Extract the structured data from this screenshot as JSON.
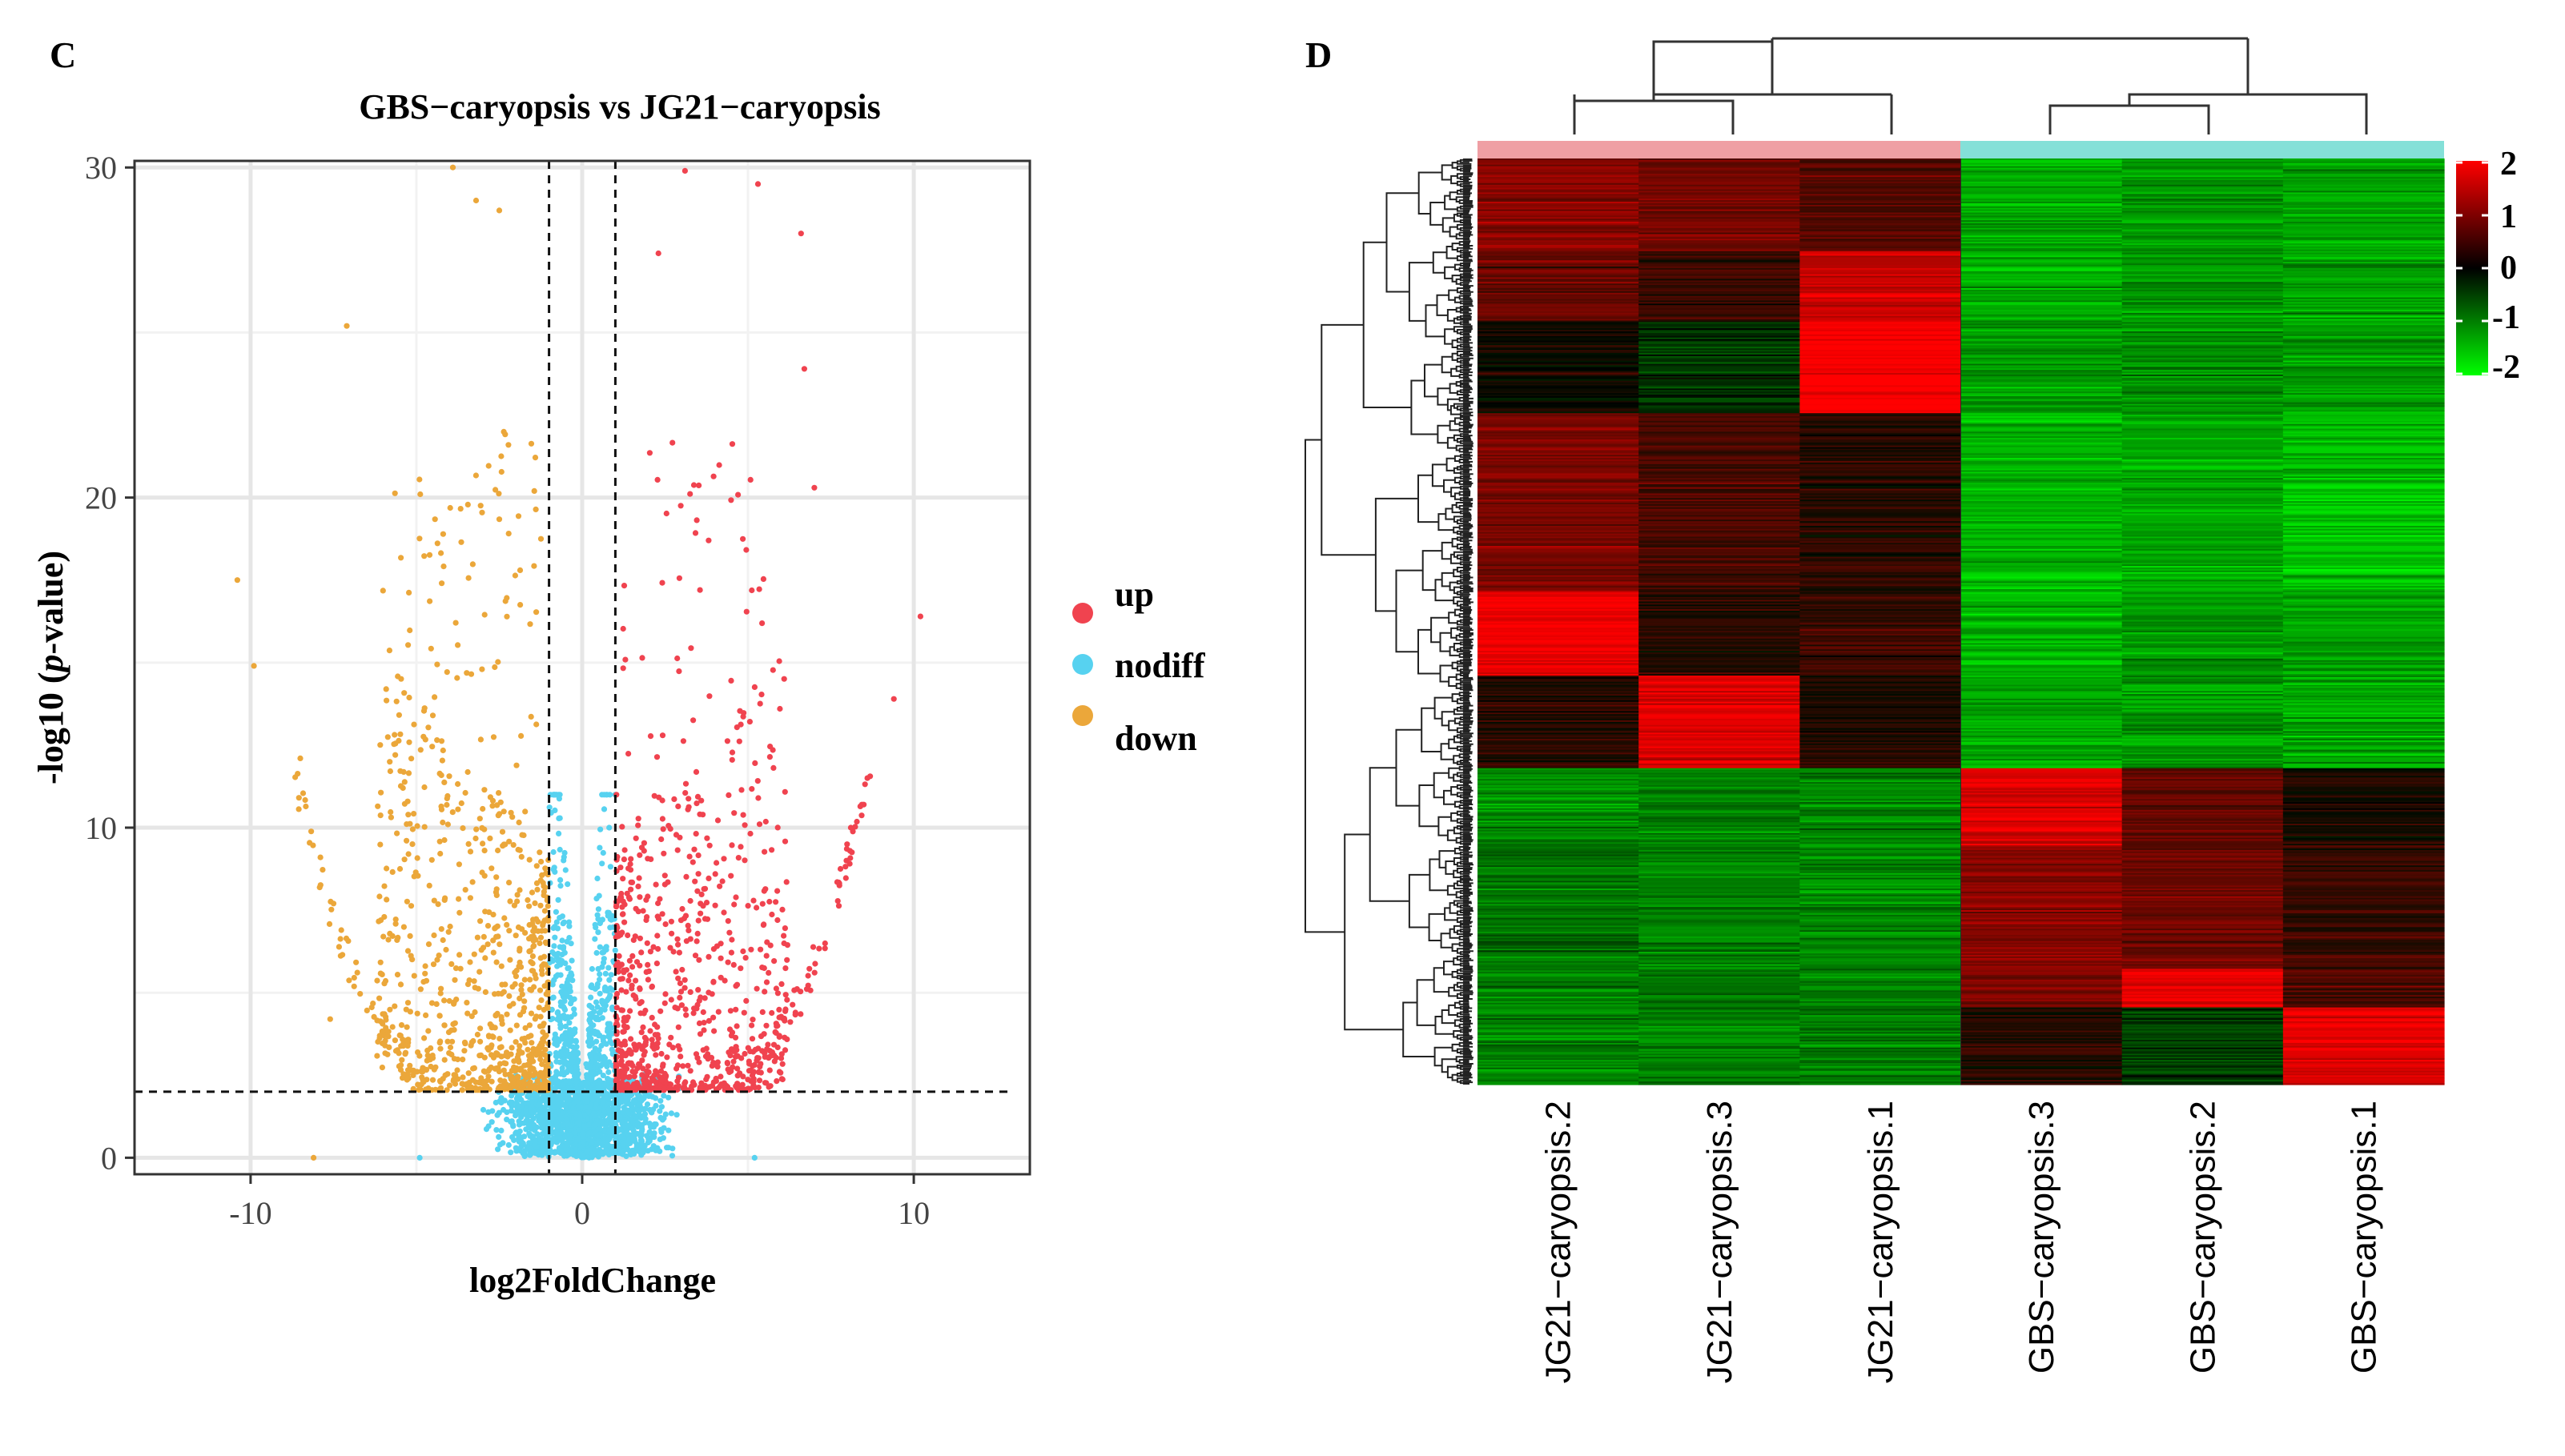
{
  "panels": {
    "volcano_letter": "C",
    "heatmap_letter": "D"
  },
  "chart_data": [
    {
      "type": "scatter",
      "name": "volcano",
      "title": "GBS−caryopsis vs JG21−caryopsis",
      "xlabel": "log2FoldChange",
      "ylabel_prefix": "-log10 (",
      "ylabel_italic": "p",
      "ylabel_suffix": "-value)",
      "xlim": [
        -13.5,
        13.5
      ],
      "ylim": [
        -0.5,
        30.2
      ],
      "xticks": [
        -10,
        0,
        10
      ],
      "yticks": [
        0,
        10,
        20,
        30
      ],
      "grid": true,
      "thresholds": {
        "log2fc": [
          -1,
          1
        ],
        "neg_log10_p": 2
      },
      "legend_position": "right",
      "legend": [
        {
          "key": "up",
          "label": "up",
          "color": "#f0434f"
        },
        {
          "key": "nodiff",
          "label": "nodiff",
          "color": "#57d2f0"
        },
        {
          "key": "down",
          "label": "down",
          "color": "#eba73a"
        }
      ],
      "highlight_points": [
        {
          "group": "down",
          "x": -10.4,
          "y": 17.5
        },
        {
          "group": "down",
          "x": -3.9,
          "y": 30.0
        },
        {
          "group": "down",
          "x": -3.2,
          "y": 29.0
        },
        {
          "group": "down",
          "x": -2.5,
          "y": 28.7
        },
        {
          "group": "down",
          "x": -7.1,
          "y": 25.2
        },
        {
          "group": "down",
          "x": -9.9,
          "y": 14.9
        },
        {
          "group": "down",
          "x": -8.5,
          "y": 12.1
        },
        {
          "group": "down",
          "x": -7.6,
          "y": 4.2
        },
        {
          "group": "down",
          "x": -8.1,
          "y": 0.0
        },
        {
          "group": "up",
          "x": 3.1,
          "y": 29.9
        },
        {
          "group": "up",
          "x": 5.3,
          "y": 29.5
        },
        {
          "group": "up",
          "x": 6.6,
          "y": 28.0
        },
        {
          "group": "up",
          "x": 2.3,
          "y": 27.4
        },
        {
          "group": "up",
          "x": 6.7,
          "y": 23.9
        },
        {
          "group": "up",
          "x": 7.0,
          "y": 20.3
        },
        {
          "group": "up",
          "x": 10.2,
          "y": 16.4
        },
        {
          "group": "up",
          "x": 9.4,
          "y": 13.9
        },
        {
          "group": "up",
          "x": 8.6,
          "y": 11.5
        },
        {
          "group": "up",
          "x": 8.1,
          "y": 10.0
        },
        {
          "group": "nodiff",
          "x": 5.2,
          "y": 0.0
        },
        {
          "group": "nodiff",
          "x": -4.9,
          "y": 0.0
        }
      ]
    },
    {
      "type": "heatmap",
      "name": "clustered-heatmap",
      "columns": [
        "JG21−caryopsis.2",
        "JG21−caryopsis.3",
        "JG21−caryopsis.1",
        "GBS−caryopsis.3",
        "GBS−caryopsis.2",
        "GBS−caryopsis.1"
      ],
      "column_groups": [
        {
          "name": "JG21",
          "columns": [
            0,
            1,
            2
          ],
          "color": "#ef9fa4"
        },
        {
          "name": "GBS",
          "columns": [
            3,
            4,
            5
          ],
          "color": "#84e0d8"
        }
      ],
      "scale": {
        "min": -2,
        "max": 2,
        "low_color": "#00ff00",
        "mid_color": "#000000",
        "high_color": "#ff0000"
      },
      "colorbar_ticks": [
        "2",
        "1",
        "0",
        "-1",
        "-2"
      ],
      "row_clusters_zscore": [
        {
          "rows": 60,
          "values": [
            1.1,
            0.9,
            0.7,
            -1.3,
            -1.2,
            -1.3
          ]
        },
        {
          "rows": 45,
          "values": [
            0.8,
            0.4,
            1.6,
            -1.3,
            -1.2,
            -1.3
          ]
        },
        {
          "rows": 60,
          "values": [
            0.1,
            -0.4,
            2.0,
            -1.2,
            -1.1,
            -1.2
          ]
        },
        {
          "rows": 115,
          "values": [
            1.0,
            0.6,
            0.3,
            -1.4,
            -1.3,
            -1.5
          ]
        },
        {
          "rows": 55,
          "values": [
            1.9,
            0.3,
            0.4,
            -1.4,
            -1.2,
            -1.3
          ]
        },
        {
          "rows": 60,
          "values": [
            0.3,
            1.7,
            0.3,
            -1.3,
            -1.2,
            -1.3
          ]
        },
        {
          "rows": 50,
          "values": [
            -1.1,
            -1.0,
            -1.0,
            1.7,
            0.8,
            0.2
          ]
        },
        {
          "rows": 80,
          "values": [
            -0.9,
            -1.0,
            -1.1,
            1.1,
            0.9,
            0.4
          ]
        },
        {
          "rows": 25,
          "values": [
            -1.0,
            -1.0,
            -1.0,
            1.0,
            1.8,
            0.6
          ]
        },
        {
          "rows": 50,
          "values": [
            -1.0,
            -1.0,
            -1.0,
            0.3,
            -0.5,
            1.8
          ]
        }
      ]
    }
  ]
}
